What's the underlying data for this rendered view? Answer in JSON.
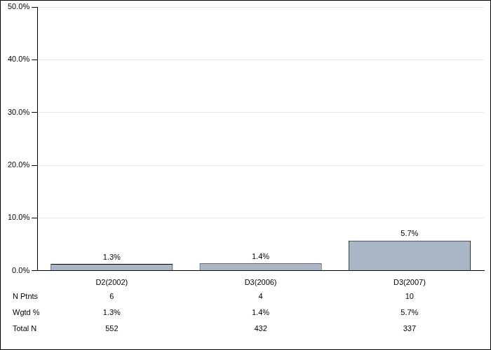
{
  "chart_data": {
    "type": "bar",
    "categories": [
      "D2(2002)",
      "D3(2006)",
      "D3(2007)"
    ],
    "values": [
      1.3,
      1.4,
      5.7
    ],
    "value_labels": [
      "1.3%",
      "1.4%",
      "5.7%"
    ],
    "data_labels": true,
    "color": "#a9b6c6",
    "ylim": [
      0,
      50
    ],
    "yticks": [
      {
        "value": 0,
        "label": "0.0%"
      },
      {
        "value": 10,
        "label": "10.0%"
      },
      {
        "value": 20,
        "label": "20.0%"
      },
      {
        "value": 30,
        "label": "30.0%"
      },
      {
        "value": 40,
        "label": "40.0%"
      },
      {
        "value": 50,
        "label": "50.0%"
      }
    ],
    "grid": true,
    "table": {
      "rows": [
        {
          "label": "N Ptnts",
          "values": [
            6,
            4,
            10
          ]
        },
        {
          "label": "Wgtd %",
          "values": [
            1.3,
            1.4,
            5.7
          ],
          "value_labels": [
            "1.3%",
            "1.4%",
            "5.7%"
          ]
        },
        {
          "label": "Total N",
          "values": [
            552,
            432,
            337
          ]
        }
      ]
    }
  }
}
